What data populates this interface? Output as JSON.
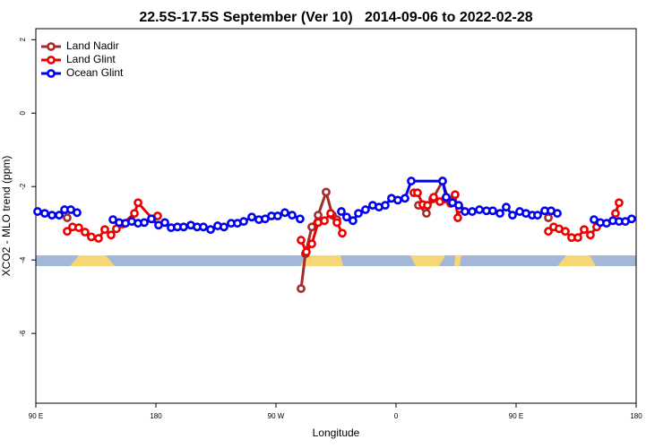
{
  "chart_data": {
    "type": "line",
    "title": "22.5S-17.5S September (Ver 10)   2014-09-06 to 2022-02-28",
    "xlabel": "Longitude",
    "ylabel": "XCO2 - MLO trend (ppm)",
    "xlim": [
      90,
      540
    ],
    "ylim": [
      -7.9,
      2.3
    ],
    "xticks": [
      {
        "value": 90,
        "label": "90 E"
      },
      180,
      {
        "value": 270,
        "label": "90 W"
      },
      {
        "value": 360,
        "label": "0"
      },
      {
        "value": 450,
        "label": "90 E"
      },
      {
        "value": 540,
        "label": "180"
      }
    ],
    "yticks": [
      -6,
      -4,
      -2,
      0,
      2
    ],
    "legend": "top-left",
    "series": [
      {
        "name": "Land Nadir",
        "color": "#a52a2a",
        "x": [
          113.5,
          null,
          288.8,
          292.1,
          296.9,
          301.6,
          307.6,
          312.3,
          315.7,
          null,
          376.8,
          382.8,
          387.5,
          394.9,
          398.9,
          null,
          474.2
        ],
        "values": [
          -2.85,
          null,
          -4.78,
          -3.83,
          -3.1,
          -2.78,
          -2.15,
          -2.78,
          -2.9,
          null,
          -2.51,
          -2.73,
          -2.34,
          -1.85,
          -2.34,
          null,
          -2.85
        ]
      },
      {
        "name": "Land Glint",
        "color": "#ee0000",
        "x": [
          113.5,
          117.5,
          122.2,
          126.9,
          131.6,
          137.0,
          141.7,
          146.4,
          150.4,
          155.1,
          163.9,
          166.6,
          177.4,
          181.3,
          null,
          288.8,
          292.8,
          296.9,
          301.6,
          306.3,
          311.0,
          315.7,
          319.7,
          null,
          373.4,
          376.1,
          380.1,
          383.5,
          388.2,
          392.9,
          396.9,
          401.0,
          404.3,
          406.3,
          407.7,
          null,
          474.2,
          478.2,
          482.2,
          486.9,
          491.6,
          496.3,
          501.0,
          505.7,
          510.4,
          null,
          524.5,
          527.2
        ],
        "values": [
          -3.22,
          -3.1,
          -3.12,
          -3.24,
          -3.37,
          -3.41,
          -3.17,
          -3.32,
          -3.15,
          -3.02,
          -2.73,
          -2.44,
          -2.88,
          -2.8,
          null,
          -3.46,
          -3.78,
          -3.56,
          -2.98,
          -2.93,
          -2.73,
          -2.98,
          -3.27,
          null,
          -2.17,
          -2.17,
          -2.49,
          -2.51,
          -2.29,
          -2.41,
          -2.34,
          -2.46,
          -2.22,
          -2.85,
          -2.61,
          null,
          -3.22,
          -3.1,
          -3.15,
          -3.22,
          -3.39,
          -3.39,
          -3.17,
          -3.32,
          -3.1,
          null,
          -2.73,
          -2.44
        ]
      },
      {
        "name": "Ocean Glint",
        "color": "#0000ee",
        "x": [
          91.3,
          96.7,
          102.1,
          107.5,
          111.5,
          116.2,
          120.9,
          null,
          147.8,
          152.5,
          157.2,
          161.9,
          166.6,
          171.3,
          176.6,
          182.0,
          186.7,
          191.4,
          196.1,
          200.8,
          206.2,
          210.9,
          215.6,
          221.0,
          226.3,
          231.0,
          236.4,
          241.1,
          245.8,
          251.9,
          257.2,
          261.9,
          266.6,
          271.3,
          276.7,
          282.1,
          288.1,
          null,
          319.0,
          323.0,
          327.7,
          331.8,
          337.1,
          342.5,
          347.2,
          351.9,
          356.6,
          361.3,
          366.7,
          371.4,
          394.9,
          397.6,
          402.3,
          407.0,
          411.7,
          417.1,
          422.5,
          427.8,
          432.5,
          437.9,
          442.6,
          447.3,
          452.7,
          457.4,
          462.1,
          466.1,
          471.5,
          476.2,
          480.9,
          null,
          508.4,
          513.1,
          517.8,
          522.5,
          527.2,
          531.9,
          536.6
        ],
        "values": [
          -2.68,
          -2.73,
          -2.78,
          -2.78,
          -2.63,
          -2.63,
          -2.71,
          null,
          -2.9,
          -2.98,
          -3.0,
          -2.95,
          -3.0,
          -2.98,
          -2.88,
          -3.05,
          -2.98,
          -3.12,
          -3.1,
          -3.1,
          -3.05,
          -3.1,
          -3.1,
          -3.17,
          -3.07,
          -3.1,
          -3.0,
          -3.0,
          -2.95,
          -2.83,
          -2.9,
          -2.88,
          -2.8,
          -2.8,
          -2.71,
          -2.78,
          -2.88,
          null,
          -2.68,
          -2.83,
          -2.93,
          -2.73,
          -2.63,
          -2.51,
          -2.56,
          -2.51,
          -2.32,
          -2.37,
          -2.32,
          -1.85,
          -1.85,
          -2.29,
          -2.44,
          -2.51,
          -2.68,
          -2.68,
          -2.63,
          -2.66,
          -2.66,
          -2.73,
          -2.56,
          -2.78,
          -2.68,
          -2.73,
          -2.78,
          -2.78,
          -2.66,
          -2.66,
          -2.73,
          null,
          -2.9,
          -2.98,
          -3.0,
          -2.93,
          -2.95,
          -2.95,
          -2.88
        ]
      }
    ]
  }
}
